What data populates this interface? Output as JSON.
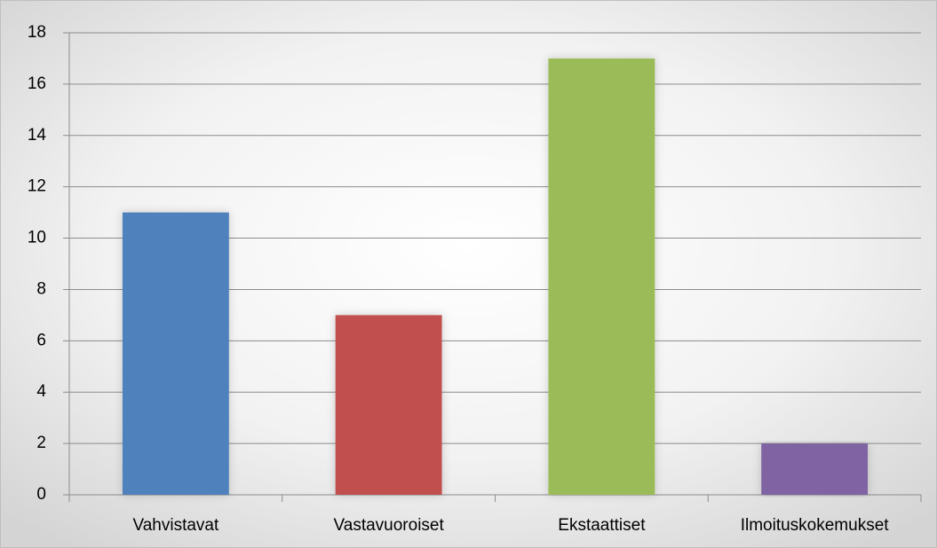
{
  "chart_data": {
    "type": "bar",
    "categories": [
      "Vahvistavat",
      "Vastavuoroiset",
      "Ekstaattiset",
      "Ilmoituskokemukset"
    ],
    "values": [
      11,
      7,
      17,
      2
    ],
    "colors": [
      "#4f81bd",
      "#c0504d",
      "#9bbb59",
      "#8064a2"
    ],
    "ylim": [
      0,
      18
    ],
    "yticks": [
      0,
      2,
      4,
      6,
      8,
      10,
      12,
      14,
      16,
      18
    ],
    "grid": true
  }
}
